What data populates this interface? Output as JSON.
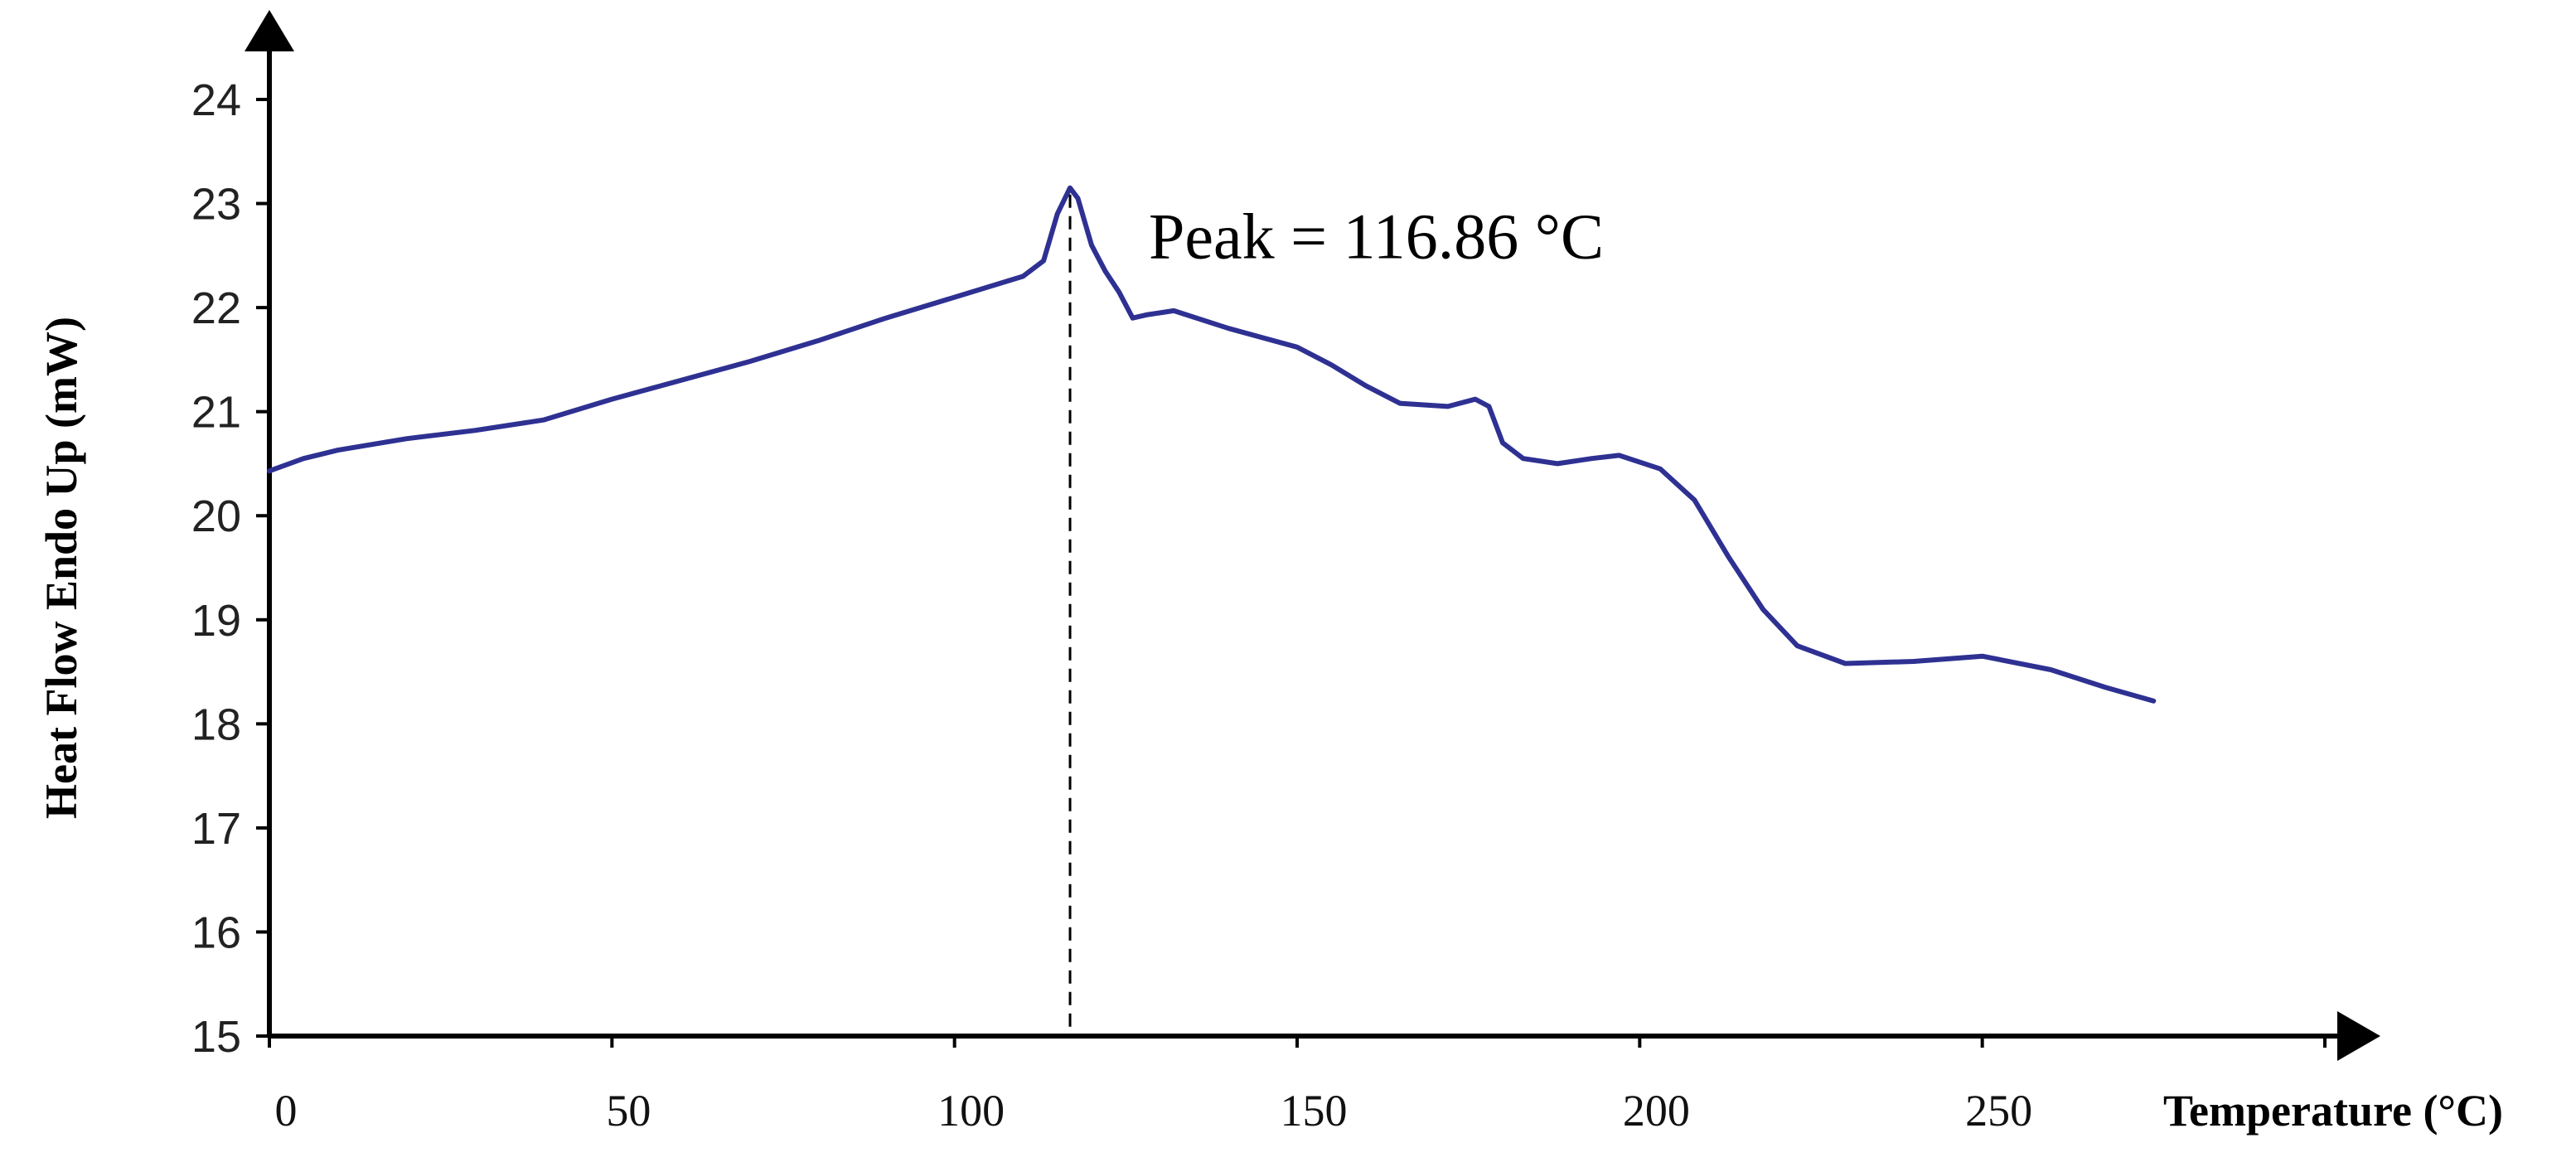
{
  "chart_data": {
    "type": "line",
    "title": "",
    "xlabel": "Temperature (°C)",
    "ylabel": "Heat Flow Endo Up (mW)",
    "xlim": [
      0,
      300
    ],
    "ylim": [
      15,
      24
    ],
    "x_ticks": [
      "0",
      "50",
      "100",
      "150",
      "200",
      "250"
    ],
    "y_ticks": [
      "15",
      "16",
      "17",
      "18",
      "19",
      "20",
      "21",
      "22",
      "23",
      "24"
    ],
    "grid": false,
    "legend": "none",
    "line_color": "#2e3192",
    "annotation": {
      "text": "Peak = 116.86 °C",
      "x": 116.86
    },
    "series": [
      {
        "points": [
          [
            0,
            20.43
          ],
          [
            5,
            20.55
          ],
          [
            10,
            20.63
          ],
          [
            20,
            20.74
          ],
          [
            30,
            20.82
          ],
          [
            40,
            20.92
          ],
          [
            50,
            21.12
          ],
          [
            60,
            21.3
          ],
          [
            70,
            21.48
          ],
          [
            80,
            21.68
          ],
          [
            90,
            21.9
          ],
          [
            100,
            22.1
          ],
          [
            105,
            22.2
          ],
          [
            110,
            22.3
          ],
          [
            113,
            22.45
          ],
          [
            115,
            22.9
          ],
          [
            116.86,
            23.15
          ],
          [
            118,
            23.05
          ],
          [
            120,
            22.6
          ],
          [
            122,
            22.35
          ],
          [
            124,
            22.15
          ],
          [
            126,
            21.9
          ],
          [
            128,
            21.93
          ],
          [
            132,
            21.97
          ],
          [
            140,
            21.8
          ],
          [
            150,
            21.62
          ],
          [
            155,
            21.45
          ],
          [
            160,
            21.25
          ],
          [
            165,
            21.08
          ],
          [
            172,
            21.05
          ],
          [
            176,
            21.12
          ],
          [
            178,
            21.05
          ],
          [
            180,
            20.7
          ],
          [
            183,
            20.55
          ],
          [
            188,
            20.5
          ],
          [
            193,
            20.55
          ],
          [
            197,
            20.58
          ],
          [
            203,
            20.45
          ],
          [
            208,
            20.15
          ],
          [
            213,
            19.6
          ],
          [
            218,
            19.1
          ],
          [
            223,
            18.75
          ],
          [
            230,
            18.58
          ],
          [
            240,
            18.6
          ],
          [
            250,
            18.65
          ],
          [
            260,
            18.52
          ],
          [
            268,
            18.35
          ],
          [
            275,
            18.22
          ]
        ]
      }
    ]
  }
}
